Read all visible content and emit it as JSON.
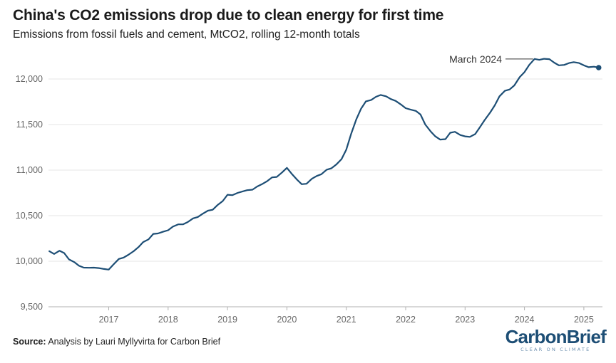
{
  "header": {
    "title": "China's CO2 emissions drop due to clean energy for first time",
    "subtitle": "Emissions from fossil fuels and cement, MtCO2, rolling 12-month totals"
  },
  "footer": {
    "source_label": "Source:",
    "source_text": " Analysis by Lauri Myllyvirta for Carbon Brief",
    "logo_text": "CarbonBrief",
    "logo_tagline": "CLEAR ON CLIMATE"
  },
  "colors": {
    "line": "#1d4e75",
    "grid": "#e6e6e6",
    "axis": "#b0b0b0",
    "logo": "#1d4e75"
  },
  "chart_data": {
    "type": "line",
    "title": "China's CO2 emissions drop due to clean energy for first time",
    "ylabel": "",
    "xlabel": "",
    "ylim": [
      9500,
      12250
    ],
    "xlim": [
      2016.0,
      2025.42
    ],
    "yticks": [
      9500,
      10000,
      10500,
      11000,
      11500,
      12000
    ],
    "ytick_labels": [
      "9,500",
      "10,000",
      "10,500",
      "11,000",
      "11,500",
      "12,000"
    ],
    "xticks": [
      2017,
      2018,
      2019,
      2020,
      2021,
      2022,
      2023,
      2024,
      2025
    ],
    "xtick_labels": [
      "2017",
      "2018",
      "2019",
      "2020",
      "2021",
      "2022",
      "2023",
      "2024",
      "2025"
    ],
    "grid": "horizontal",
    "annotation": {
      "text": "March 2024",
      "x": 2024.17,
      "y": 12220
    },
    "series": [
      {
        "name": "",
        "x": [
          2016.0,
          2016.08,
          2016.17,
          2016.25,
          2016.33,
          2016.42,
          2016.5,
          2016.58,
          2016.67,
          2016.75,
          2016.83,
          2016.92,
          2017.0,
          2017.08,
          2017.17,
          2017.25,
          2017.33,
          2017.42,
          2017.5,
          2017.58,
          2017.67,
          2017.75,
          2017.83,
          2017.92,
          2018.0,
          2018.08,
          2018.17,
          2018.25,
          2018.33,
          2018.42,
          2018.5,
          2018.58,
          2018.67,
          2018.75,
          2018.83,
          2018.92,
          2019.0,
          2019.08,
          2019.17,
          2019.25,
          2019.33,
          2019.42,
          2019.5,
          2019.58,
          2019.67,
          2019.75,
          2019.83,
          2019.92,
          2020.0,
          2020.08,
          2020.17,
          2020.25,
          2020.33,
          2020.42,
          2020.5,
          2020.58,
          2020.67,
          2020.75,
          2020.83,
          2020.92,
          2021.0,
          2021.08,
          2021.17,
          2021.25,
          2021.33,
          2021.42,
          2021.5,
          2021.58,
          2021.67,
          2021.75,
          2021.83,
          2021.92,
          2022.0,
          2022.08,
          2022.17,
          2022.25,
          2022.33,
          2022.42,
          2022.5,
          2022.58,
          2022.67,
          2022.75,
          2022.83,
          2022.92,
          2023.0,
          2023.08,
          2023.17,
          2023.25,
          2023.33,
          2023.42,
          2023.5,
          2023.58,
          2023.67,
          2023.75,
          2023.83,
          2023.92,
          2024.0,
          2024.08,
          2024.17,
          2024.25,
          2024.33,
          2024.42,
          2024.5,
          2024.58,
          2024.67,
          2024.75,
          2024.83,
          2024.92,
          2025.0,
          2025.08,
          2025.17,
          2025.25
        ],
        "values": [
          10110,
          10080,
          10115,
          10090,
          10020,
          9990,
          9950,
          9930,
          9928,
          9930,
          9925,
          9915,
          9908,
          9965,
          10025,
          10040,
          10070,
          10110,
          10155,
          10210,
          10240,
          10300,
          10305,
          10325,
          10340,
          10380,
          10405,
          10405,
          10430,
          10470,
          10485,
          10520,
          10555,
          10565,
          10615,
          10660,
          10730,
          10725,
          10750,
          10765,
          10780,
          10785,
          10820,
          10845,
          10880,
          10920,
          10925,
          10975,
          11025,
          10960,
          10895,
          10845,
          10850,
          10905,
          10935,
          10955,
          11005,
          11020,
          11060,
          11120,
          11225,
          11395,
          11560,
          11675,
          11755,
          11770,
          11805,
          11825,
          11810,
          11780,
          11760,
          11720,
          11680,
          11665,
          11650,
          11610,
          11500,
          11425,
          11370,
          11335,
          11340,
          11410,
          11420,
          11385,
          11370,
          11365,
          11395,
          11470,
          11550,
          11630,
          11710,
          11810,
          11870,
          11885,
          11930,
          12020,
          12075,
          12155,
          12220,
          12210,
          12222,
          12218,
          12180,
          12150,
          12155,
          12175,
          12185,
          12175,
          12150,
          12130,
          12135,
          12125
        ]
      }
    ]
  }
}
